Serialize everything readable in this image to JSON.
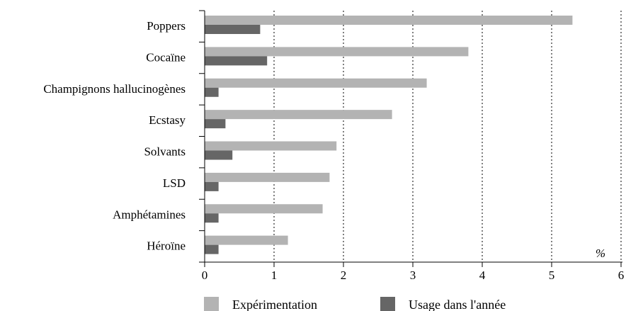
{
  "chart_data": {
    "type": "bar",
    "orientation": "horizontal",
    "categories": [
      "Poppers",
      "Cocaïne",
      "Champignons hallucinogènes",
      "Ecstasy",
      "Solvants",
      "LSD",
      "Amphétamines",
      "Héroïne"
    ],
    "series": [
      {
        "name": "Expérimentation",
        "values": [
          5.3,
          3.8,
          3.2,
          2.7,
          1.9,
          1.8,
          1.7,
          1.2
        ],
        "color": "#b3b3b3"
      },
      {
        "name": "Usage dans l'année",
        "values": [
          0.8,
          0.9,
          0.2,
          0.3,
          0.4,
          0.2,
          0.2,
          0.2
        ],
        "color": "#666666"
      }
    ],
    "xlim": [
      0,
      6
    ],
    "xticks": [
      "0",
      "1",
      "2",
      "3",
      "4",
      "5",
      "6"
    ],
    "unit": "%",
    "grid": "vertical dotted",
    "legend": "bottom"
  }
}
